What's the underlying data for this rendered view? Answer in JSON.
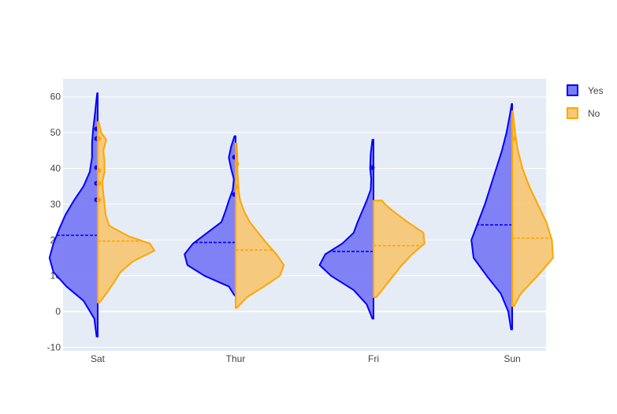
{
  "chart_data": {
    "type": "violin",
    "mode": "split",
    "categories": [
      "Sat",
      "Thur",
      "Fri",
      "Sun"
    ],
    "ylim": [
      -11,
      65
    ],
    "yticks": [
      -10,
      0,
      10,
      20,
      30,
      40,
      50,
      60
    ],
    "grid": true,
    "legend_position": "top-right",
    "series": [
      {
        "name": "Yes",
        "side": "negative",
        "color": "#0000ff",
        "fill": "#7b7bf5",
        "groups": [
          {
            "category": "Sat",
            "mean": 21.3,
            "range": [
              -7,
              61
            ],
            "density": [
              [
                -7,
                0.02
              ],
              [
                -2,
                0.06
              ],
              [
                3,
                0.25
              ],
              [
                7,
                0.55
              ],
              [
                11,
                0.78
              ],
              [
                15,
                0.85
              ],
              [
                19,
                0.78
              ],
              [
                23,
                0.68
              ],
              [
                27,
                0.57
              ],
              [
                31,
                0.42
              ],
              [
                35,
                0.25
              ],
              [
                39,
                0.14
              ],
              [
                43,
                0.1
              ],
              [
                47,
                0.1
              ],
              [
                51,
                0.08
              ],
              [
                55,
                0.05
              ],
              [
                58,
                0.03
              ],
              [
                61,
                0.01
              ]
            ],
            "points": [
              51.0,
              48.3,
              40.2,
              35.8,
              31.2
            ]
          },
          {
            "category": "Thur",
            "mean": 19.3,
            "range": [
              4.5,
              49
            ],
            "density": [
              [
                4.5,
                0.02
              ],
              [
                7,
                0.12
              ],
              [
                10,
                0.55
              ],
              [
                13,
                0.85
              ],
              [
                16,
                0.9
              ],
              [
                19,
                0.75
              ],
              [
                22,
                0.5
              ],
              [
                25,
                0.25
              ],
              [
                28,
                0.18
              ],
              [
                31,
                0.12
              ],
              [
                34,
                0.05
              ],
              [
                37,
                0.03
              ],
              [
                40,
                0.08
              ],
              [
                43,
                0.12
              ],
              [
                46,
                0.08
              ],
              [
                49,
                0.02
              ]
            ],
            "points": [
              43.1,
              32.7
            ]
          },
          {
            "category": "Fri",
            "mean": 16.8,
            "range": [
              -2,
              48
            ],
            "density": [
              [
                -2,
                0.02
              ],
              [
                2,
                0.12
              ],
              [
                6,
                0.35
              ],
              [
                10,
                0.75
              ],
              [
                13,
                0.95
              ],
              [
                16,
                0.85
              ],
              [
                19,
                0.55
              ],
              [
                22,
                0.35
              ],
              [
                25,
                0.28
              ],
              [
                28,
                0.2
              ],
              [
                31,
                0.12
              ],
              [
                34,
                0.05
              ],
              [
                37,
                0.04
              ],
              [
                40,
                0.06
              ],
              [
                44,
                0.05
              ],
              [
                48,
                0.02
              ]
            ],
            "points": [
              40.2
            ]
          },
          {
            "category": "Sun",
            "mean": 24.2,
            "range": [
              -5,
              58
            ],
            "density": [
              [
                -5,
                0.02
              ],
              [
                0,
                0.07
              ],
              [
                5,
                0.2
              ],
              [
                10,
                0.45
              ],
              [
                15,
                0.68
              ],
              [
                20,
                0.72
              ],
              [
                25,
                0.6
              ],
              [
                30,
                0.48
              ],
              [
                35,
                0.38
              ],
              [
                40,
                0.28
              ],
              [
                45,
                0.18
              ],
              [
                50,
                0.1
              ],
              [
                55,
                0.04
              ],
              [
                58,
                0.01
              ]
            ],
            "points": []
          }
        ]
      },
      {
        "name": "No",
        "side": "positive",
        "color": "#ffa500",
        "fill": "#f6c878",
        "groups": [
          {
            "category": "Sat",
            "mean": 19.7,
            "range": [
              2.5,
              53
            ],
            "density": [
              [
                2.5,
                0.03
              ],
              [
                5,
                0.15
              ],
              [
                8,
                0.28
              ],
              [
                11,
                0.4
              ],
              [
                14,
                0.62
              ],
              [
                17,
                1.0
              ],
              [
                19,
                0.92
              ],
              [
                21,
                0.55
              ],
              [
                24,
                0.2
              ],
              [
                27,
                0.14
              ],
              [
                30,
                0.12
              ],
              [
                33,
                0.1
              ],
              [
                36,
                0.08
              ],
              [
                39,
                0.12
              ],
              [
                42,
                0.12
              ],
              [
                45,
                0.1
              ],
              [
                48,
                0.15
              ],
              [
                50,
                0.06
              ],
              [
                53,
                0.02
              ]
            ],
            "points": [
              48.3,
              39.4,
              35.8,
              31.2
            ]
          },
          {
            "category": "Thur",
            "mean": 17.2,
            "range": [
              1,
              47
            ],
            "density": [
              [
                1,
                0.02
              ],
              [
                4,
                0.2
              ],
              [
                7,
                0.5
              ],
              [
                10,
                0.78
              ],
              [
                13,
                0.85
              ],
              [
                16,
                0.72
              ],
              [
                19,
                0.55
              ],
              [
                22,
                0.4
              ],
              [
                25,
                0.25
              ],
              [
                28,
                0.15
              ],
              [
                31,
                0.08
              ],
              [
                34,
                0.05
              ],
              [
                37,
                0.04
              ],
              [
                40,
                0.03
              ],
              [
                43,
                0.03
              ],
              [
                47,
                0.02
              ]
            ],
            "points": [
              41.2,
              34.8
            ]
          },
          {
            "category": "Fri",
            "mean": 18.4,
            "range": [
              4,
              31
            ],
            "density": [
              [
                4,
                0.05
              ],
              [
                7,
                0.2
              ],
              [
                10,
                0.35
              ],
              [
                13,
                0.5
              ],
              [
                16,
                0.68
              ],
              [
                19,
                0.9
              ],
              [
                22,
                0.88
              ],
              [
                25,
                0.6
              ],
              [
                28,
                0.35
              ],
              [
                30,
                0.2
              ],
              [
                31,
                0.15
              ]
            ],
            "points": []
          },
          {
            "category": "Sun",
            "mean": 20.5,
            "range": [
              1.5,
              56
            ],
            "density": [
              [
                1.5,
                0.03
              ],
              [
                5,
                0.15
              ],
              [
                10,
                0.45
              ],
              [
                15,
                0.72
              ],
              [
                20,
                0.7
              ],
              [
                25,
                0.6
              ],
              [
                30,
                0.45
              ],
              [
                35,
                0.3
              ],
              [
                40,
                0.18
              ],
              [
                45,
                0.1
              ],
              [
                50,
                0.05
              ],
              [
                53,
                0.03
              ],
              [
                56,
                0.01
              ]
            ],
            "points": [
              48.3
            ]
          }
        ]
      }
    ]
  }
}
